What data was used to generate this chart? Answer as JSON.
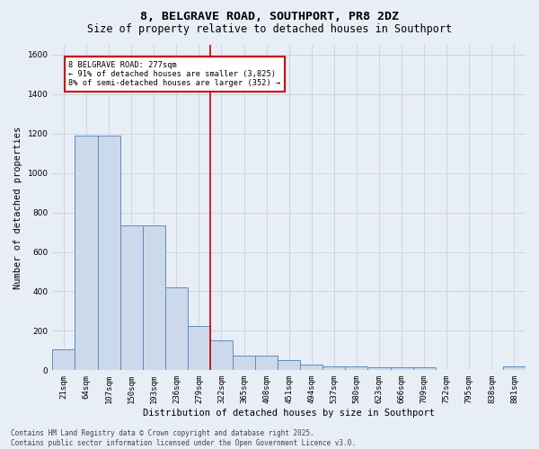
{
  "title": "8, BELGRAVE ROAD, SOUTHPORT, PR8 2DZ",
  "subtitle": "Size of property relative to detached houses in Southport",
  "xlabel": "Distribution of detached houses by size in Southport",
  "ylabel": "Number of detached properties",
  "categories": [
    "21sqm",
    "64sqm",
    "107sqm",
    "150sqm",
    "193sqm",
    "236sqm",
    "279sqm",
    "322sqm",
    "365sqm",
    "408sqm",
    "451sqm",
    "494sqm",
    "537sqm",
    "580sqm",
    "623sqm",
    "666sqm",
    "709sqm",
    "752sqm",
    "795sqm",
    "838sqm",
    "881sqm"
  ],
  "values": [
    108,
    1190,
    1190,
    735,
    735,
    420,
    225,
    150,
    75,
    75,
    50,
    30,
    20,
    20,
    15,
    15,
    15,
    0,
    0,
    0,
    20
  ],
  "bar_color": "#ccd9ea",
  "bar_edge_color": "#5b8dc0",
  "grid_color": "#ccd5e3",
  "background_color": "#e8eef6",
  "vline_x": 6.5,
  "vline_color": "#cc0000",
  "annotation_text": "8 BELGRAVE ROAD: 277sqm\n← 91% of detached houses are smaller (3,825)\n8% of semi-detached houses are larger (352) →",
  "annotation_box_color": "#ffffff",
  "annotation_box_edge": "#cc0000",
  "ylim": [
    0,
    1650
  ],
  "yticks": [
    0,
    200,
    400,
    600,
    800,
    1000,
    1200,
    1400,
    1600
  ],
  "footer": "Contains HM Land Registry data © Crown copyright and database right 2025.\nContains public sector information licensed under the Open Government Licence v3.0.",
  "title_fontsize": 9.5,
  "subtitle_fontsize": 8.5,
  "axis_label_fontsize": 7.5,
  "tick_fontsize": 6.5,
  "annotation_fontsize": 6.2,
  "footer_fontsize": 5.5
}
